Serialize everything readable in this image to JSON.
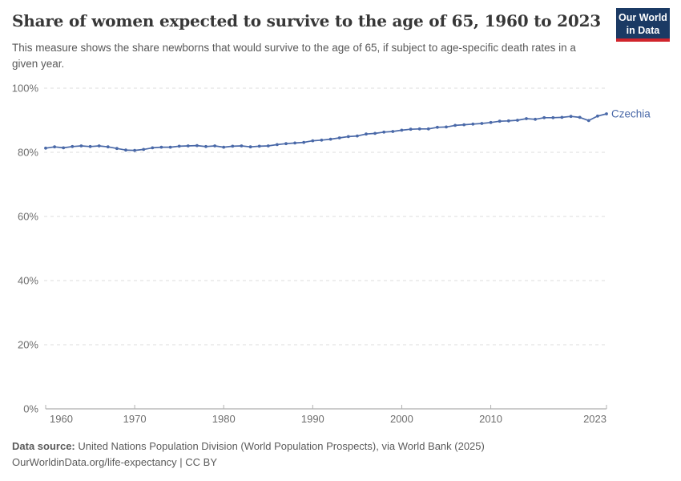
{
  "header": {
    "title": "Share of women expected to survive to the age of 65, 1960 to 2023",
    "subtitle": "This measure shows the share newborns that would survive to the age of 65, if subject to age-specific death rates in a given year.",
    "logo_line1": "Our World",
    "logo_line2": "in Data"
  },
  "footer": {
    "source_label": "Data source:",
    "source_text": " United Nations Population Division (World Population Prospects), via World Bank (2025)",
    "url": "OurWorldinData.org/life-expectancy",
    "separator": " | ",
    "license": "CC BY"
  },
  "colors": {
    "series": "#4a69a8",
    "series_label": "#4a69a8",
    "gridline": "#dedede",
    "axis_line": "#9a9a9a",
    "tick_mark": "#b0b0b0",
    "axis_label": "#6e6e6e",
    "logo_bg": "#1b3a64",
    "logo_red": "#d0242c",
    "title_text": "#373737",
    "subtitle_text": "#595959",
    "footer_text": "#5b5b5b"
  },
  "chart_data": {
    "type": "line",
    "title": "Share of women expected to survive to the age of 65, 1960 to 2023",
    "xlabel": "",
    "ylabel": "",
    "xlim": [
      1960,
      2023
    ],
    "ylim": [
      0,
      100
    ],
    "grid": "horizontal dashed",
    "legend_position": "series end label",
    "yticks": [
      {
        "value": 0,
        "label": "0%"
      },
      {
        "value": 20,
        "label": "20%"
      },
      {
        "value": 40,
        "label": "40%"
      },
      {
        "value": 60,
        "label": "60%"
      },
      {
        "value": 80,
        "label": "80%"
      },
      {
        "value": 100,
        "label": "100%"
      }
    ],
    "xticks": [
      {
        "value": 1960,
        "label": "1960"
      },
      {
        "value": 1970,
        "label": "1970"
      },
      {
        "value": 1980,
        "label": "1980"
      },
      {
        "value": 1990,
        "label": "1990"
      },
      {
        "value": 2000,
        "label": "2000"
      },
      {
        "value": 2010,
        "label": "2010"
      },
      {
        "value": 2023,
        "label": "2023"
      }
    ],
    "series": [
      {
        "name": "Czechia",
        "color": "#4a69a8",
        "points": [
          [
            1960,
            81.3
          ],
          [
            1961,
            81.7
          ],
          [
            1962,
            81.4
          ],
          [
            1963,
            81.8
          ],
          [
            1964,
            82.0
          ],
          [
            1965,
            81.8
          ],
          [
            1966,
            82.0
          ],
          [
            1967,
            81.7
          ],
          [
            1968,
            81.2
          ],
          [
            1969,
            80.7
          ],
          [
            1970,
            80.6
          ],
          [
            1971,
            80.9
          ],
          [
            1972,
            81.4
          ],
          [
            1973,
            81.6
          ],
          [
            1974,
            81.6
          ],
          [
            1975,
            81.9
          ],
          [
            1976,
            82.0
          ],
          [
            1977,
            82.1
          ],
          [
            1978,
            81.8
          ],
          [
            1979,
            82.0
          ],
          [
            1980,
            81.6
          ],
          [
            1981,
            81.9
          ],
          [
            1982,
            82.0
          ],
          [
            1983,
            81.7
          ],
          [
            1984,
            81.9
          ],
          [
            1985,
            82.0
          ],
          [
            1986,
            82.4
          ],
          [
            1987,
            82.7
          ],
          [
            1988,
            82.9
          ],
          [
            1989,
            83.1
          ],
          [
            1990,
            83.6
          ],
          [
            1991,
            83.8
          ],
          [
            1992,
            84.1
          ],
          [
            1993,
            84.5
          ],
          [
            1994,
            84.9
          ],
          [
            1995,
            85.1
          ],
          [
            1996,
            85.7
          ],
          [
            1997,
            85.9
          ],
          [
            1998,
            86.3
          ],
          [
            1999,
            86.5
          ],
          [
            2000,
            86.9
          ],
          [
            2001,
            87.2
          ],
          [
            2002,
            87.3
          ],
          [
            2003,
            87.3
          ],
          [
            2004,
            87.8
          ],
          [
            2005,
            87.9
          ],
          [
            2006,
            88.4
          ],
          [
            2007,
            88.6
          ],
          [
            2008,
            88.8
          ],
          [
            2009,
            89.0
          ],
          [
            2010,
            89.3
          ],
          [
            2011,
            89.7
          ],
          [
            2012,
            89.8
          ],
          [
            2013,
            90.0
          ],
          [
            2014,
            90.5
          ],
          [
            2015,
            90.3
          ],
          [
            2016,
            90.8
          ],
          [
            2017,
            90.8
          ],
          [
            2018,
            90.9
          ],
          [
            2019,
            91.2
          ],
          [
            2020,
            90.9
          ],
          [
            2021,
            89.9
          ],
          [
            2022,
            91.3
          ],
          [
            2023,
            92.0
          ]
        ]
      }
    ]
  }
}
